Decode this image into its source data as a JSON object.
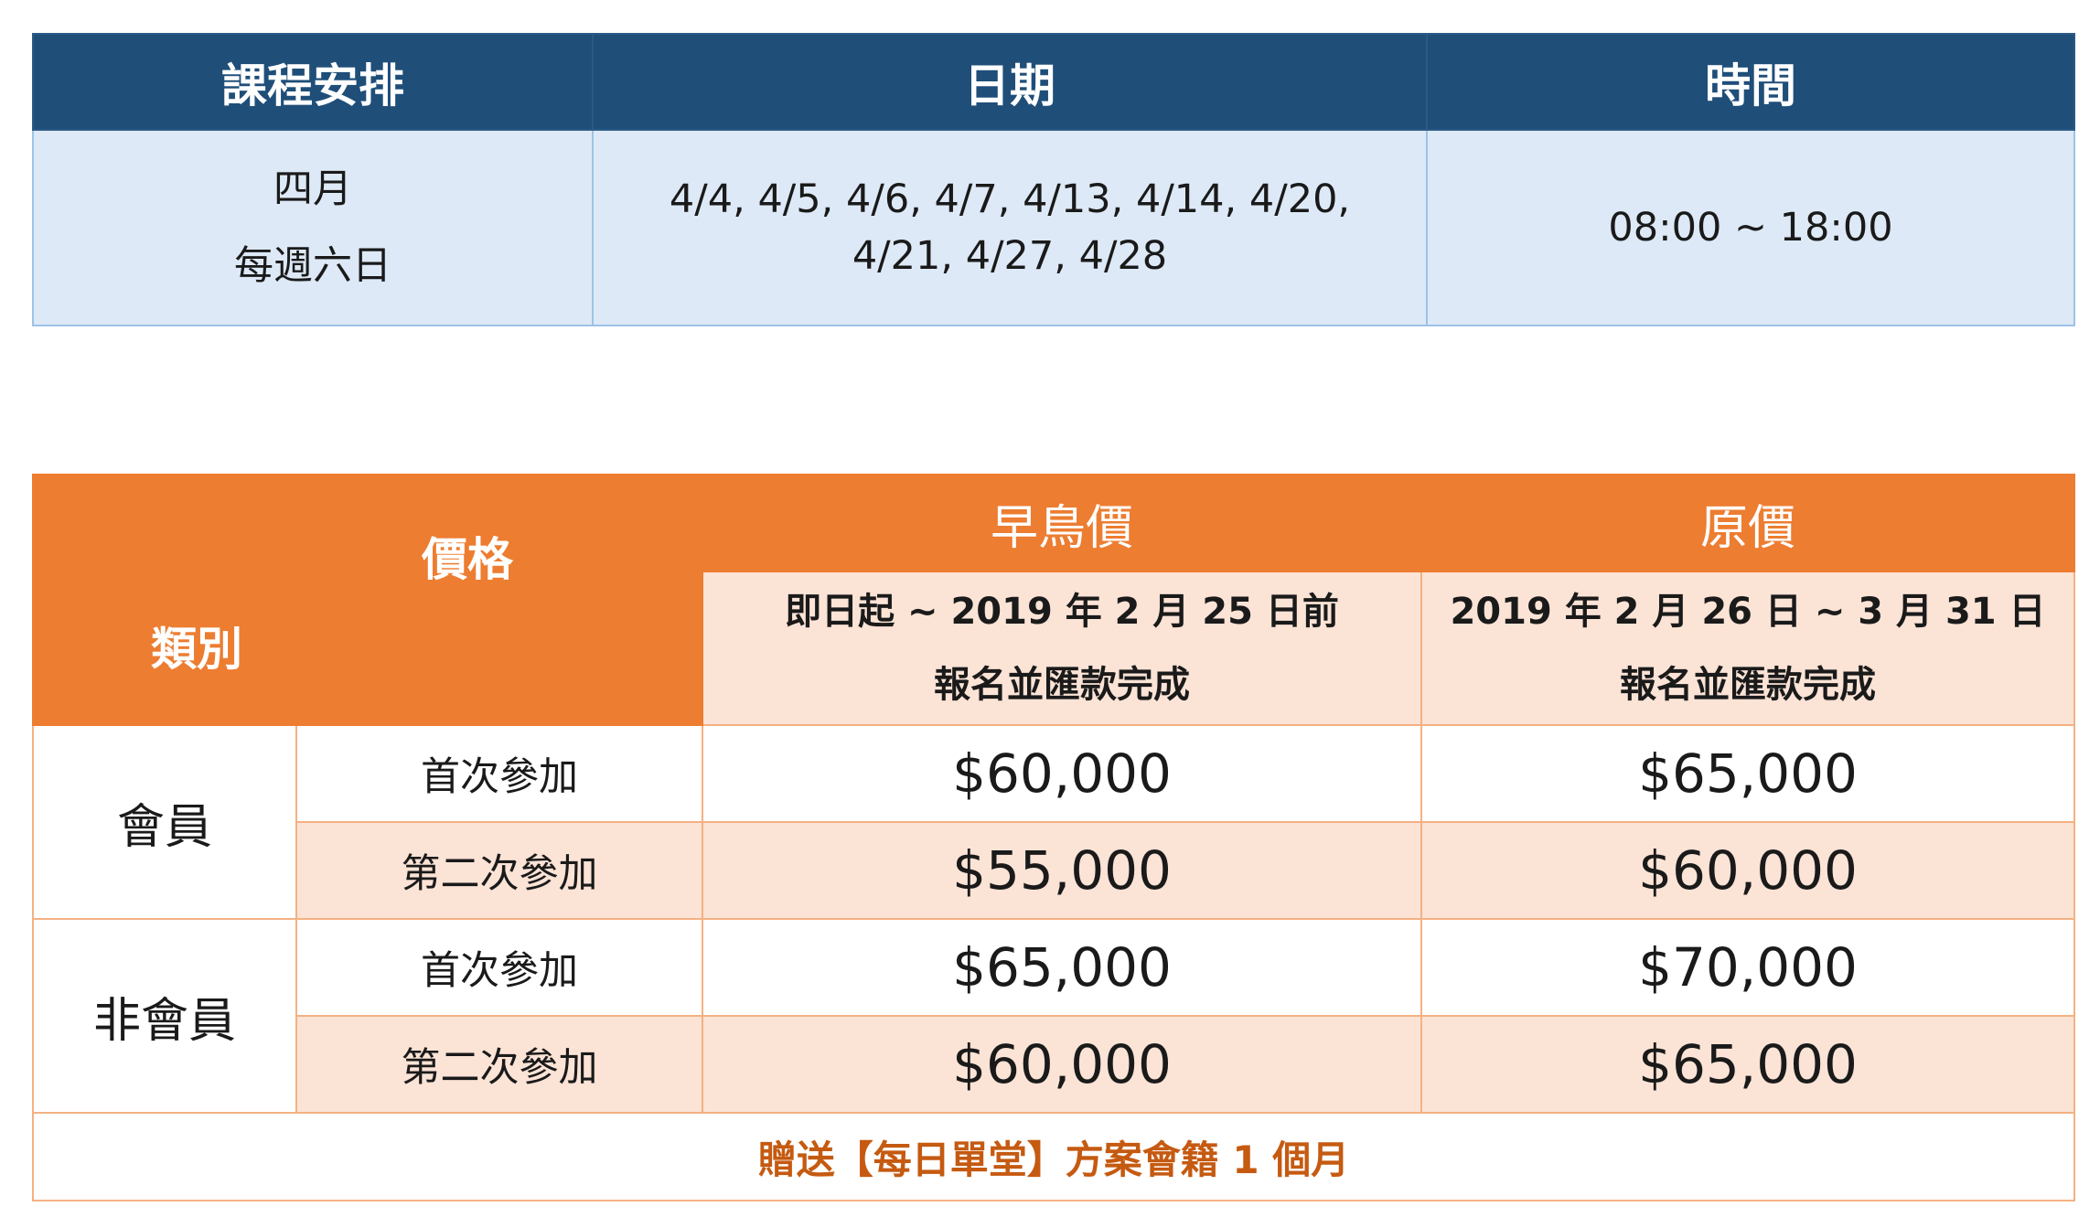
{
  "schedule": {
    "headers": [
      "課程安排",
      "日期",
      "時間"
    ],
    "row": {
      "course_line1": "四月",
      "course_line2": "每週六日",
      "dates_line1": "4/4, 4/5, 4/6, 4/7, 4/13, 4/14, 4/20,",
      "dates_line2": "4/21, 4/27, 4/28",
      "time": "08:00 ~ 18:00"
    }
  },
  "pricing": {
    "corner_price_label": "價格",
    "corner_category_label": "類別",
    "early_bird": {
      "title": "早鳥價",
      "line1": "即日起 ~ 2019 年 2 月 25 日前",
      "line2": "報名並匯款完成"
    },
    "regular": {
      "title": "原價",
      "line1": "2019 年 2 月 26 日 ~ 3 月 31 日",
      "line2": "報名並匯款完成"
    },
    "groups": [
      {
        "category": "會員",
        "rows": [
          {
            "type": "首次參加",
            "early": "$60,000",
            "regular": "$65,000"
          },
          {
            "type": "第二次參加",
            "early": "$55,000",
            "regular": "$60,000"
          }
        ]
      },
      {
        "category": "非會員",
        "rows": [
          {
            "type": "首次參加",
            "early": "$65,000",
            "regular": "$70,000"
          },
          {
            "type": "第二次參加",
            "early": "$60,000",
            "regular": "$65,000"
          }
        ]
      }
    ],
    "note": "贈送【每日單堂】方案會籍 1 個月"
  }
}
